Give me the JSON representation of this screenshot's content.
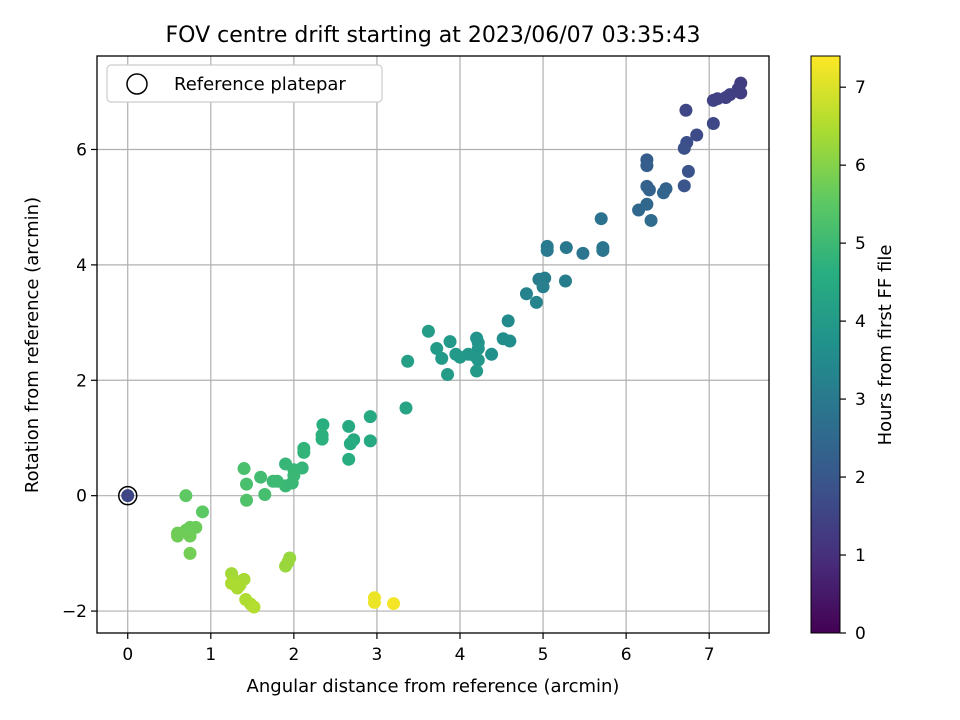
{
  "chart_data": {
    "type": "scatter",
    "title": "FOV centre drift starting at 2023/06/07 03:35:43",
    "xlabel": "Angular distance from reference (arcmin)",
    "ylabel": "Rotation from reference (arcmin)",
    "xlim": [
      -0.37,
      7.72
    ],
    "ylim": [
      -2.38,
      7.62
    ],
    "x_ticks": [
      0,
      1,
      2,
      3,
      4,
      5,
      6,
      7
    ],
    "y_ticks": [
      -2,
      0,
      2,
      4,
      6
    ],
    "x_tick_labels": [
      "0",
      "1",
      "2",
      "3",
      "4",
      "5",
      "6",
      "7"
    ],
    "y_tick_labels": [
      "−2",
      "0",
      "2",
      "4",
      "6"
    ],
    "grid": true,
    "legend": {
      "position": "top-left",
      "entries": [
        "Reference platepar"
      ]
    },
    "colorbar": {
      "label": "Hours from first FF file",
      "range": [
        0,
        7.4
      ],
      "ticks": [
        0,
        1,
        2,
        3,
        4,
        5,
        6,
        7
      ],
      "tick_labels": [
        "0",
        "1",
        "2",
        "3",
        "4",
        "5",
        "6",
        "7"
      ],
      "colormap": "viridis"
    },
    "reference_point": {
      "x": 0,
      "y": 0,
      "hours": 0
    },
    "series": [
      {
        "points": [
          [
            7.38,
            7.15,
            1.3
          ],
          [
            7.35,
            7.05,
            1.35
          ],
          [
            7.38,
            6.98,
            1.35
          ],
          [
            7.25,
            6.95,
            1.4
          ],
          [
            7.2,
            6.9,
            1.4
          ],
          [
            7.1,
            6.88,
            1.45
          ],
          [
            7.05,
            6.85,
            1.45
          ],
          [
            6.72,
            6.68,
            1.55
          ],
          [
            7.05,
            6.45,
            1.6
          ],
          [
            6.85,
            6.25,
            1.7
          ],
          [
            6.73,
            6.12,
            1.75
          ],
          [
            6.7,
            6.02,
            1.8
          ],
          [
            6.75,
            5.62,
            1.9
          ],
          [
            6.7,
            5.37,
            1.95
          ],
          [
            6.25,
            5.82,
            2.15
          ],
          [
            6.25,
            5.72,
            2.2
          ],
          [
            6.25,
            5.36,
            2.3
          ],
          [
            6.28,
            5.3,
            2.3
          ],
          [
            6.48,
            5.32,
            2.35
          ],
          [
            6.45,
            5.25,
            2.4
          ],
          [
            6.25,
            5.05,
            2.45
          ],
          [
            6.15,
            4.95,
            2.5
          ],
          [
            6.3,
            4.77,
            2.6
          ],
          [
            5.7,
            4.8,
            2.75
          ],
          [
            5.72,
            4.3,
            2.85
          ],
          [
            5.72,
            4.25,
            2.85
          ],
          [
            5.48,
            4.2,
            2.9
          ],
          [
            5.28,
            4.3,
            2.95
          ],
          [
            5.05,
            4.32,
            3.0
          ],
          [
            5.05,
            4.25,
            3.0
          ],
          [
            4.95,
            3.75,
            3.1
          ],
          [
            5.02,
            3.77,
            3.1
          ],
          [
            5.0,
            3.62,
            3.15
          ],
          [
            5.27,
            3.72,
            3.1
          ],
          [
            4.8,
            3.5,
            3.25
          ],
          [
            4.92,
            3.35,
            3.3
          ],
          [
            4.58,
            3.03,
            3.5
          ],
          [
            4.6,
            2.68,
            3.6
          ],
          [
            4.52,
            2.72,
            3.6
          ],
          [
            4.38,
            2.45,
            3.7
          ],
          [
            4.2,
            2.73,
            3.8
          ],
          [
            4.22,
            2.65,
            3.8
          ],
          [
            4.22,
            2.55,
            3.85
          ],
          [
            4.18,
            2.42,
            3.85
          ],
          [
            4.22,
            2.35,
            3.9
          ],
          [
            4.2,
            2.16,
            3.95
          ],
          [
            4.1,
            2.45,
            3.9
          ],
          [
            4.0,
            2.4,
            3.95
          ],
          [
            3.95,
            2.45,
            3.95
          ],
          [
            3.88,
            2.67,
            3.95
          ],
          [
            3.72,
            2.55,
            4.0
          ],
          [
            3.78,
            2.38,
            4.0
          ],
          [
            3.85,
            2.1,
            4.05
          ],
          [
            3.62,
            2.85,
            4.05
          ],
          [
            3.37,
            2.33,
            4.15
          ],
          [
            3.35,
            1.52,
            4.3
          ],
          [
            2.92,
            1.37,
            4.45
          ],
          [
            2.92,
            0.95,
            4.5
          ],
          [
            2.72,
            0.97,
            4.5
          ],
          [
            2.68,
            0.9,
            4.55
          ],
          [
            2.66,
            1.2,
            4.5
          ],
          [
            2.66,
            0.63,
            4.6
          ],
          [
            2.35,
            1.23,
            4.65
          ],
          [
            2.34,
            1.05,
            4.7
          ],
          [
            2.34,
            0.98,
            4.7
          ],
          [
            2.12,
            0.82,
            4.8
          ],
          [
            2.12,
            0.75,
            4.8
          ],
          [
            2.1,
            0.48,
            4.85
          ],
          [
            2.0,
            0.45,
            4.9
          ],
          [
            1.9,
            0.55,
            4.9
          ],
          [
            2.0,
            0.35,
            4.95
          ],
          [
            1.98,
            0.22,
            4.95
          ],
          [
            1.9,
            0.17,
            4.95
          ],
          [
            1.8,
            0.25,
            5.0
          ],
          [
            1.75,
            0.25,
            5.0
          ],
          [
            1.6,
            0.32,
            5.1
          ],
          [
            1.65,
            0.02,
            5.15
          ],
          [
            1.4,
            0.47,
            5.2
          ],
          [
            1.43,
            0.2,
            5.2
          ],
          [
            1.43,
            -0.08,
            5.3
          ],
          [
            0.9,
            -0.28,
            5.5
          ],
          [
            0.7,
            0.0,
            5.55
          ],
          [
            0.82,
            -0.55,
            5.7
          ],
          [
            0.75,
            -0.55,
            5.7
          ],
          [
            0.7,
            -0.6,
            5.7
          ],
          [
            0.75,
            -0.7,
            5.75
          ],
          [
            0.6,
            -0.65,
            5.75
          ],
          [
            0.6,
            -0.7,
            5.75
          ],
          [
            0.75,
            -1.0,
            5.8
          ],
          [
            1.95,
            -1.08,
            6.2
          ],
          [
            1.93,
            -1.15,
            6.25
          ],
          [
            1.9,
            -1.22,
            6.25
          ],
          [
            1.25,
            -1.35,
            6.35
          ],
          [
            1.4,
            -1.45,
            6.4
          ],
          [
            1.3,
            -1.48,
            6.4
          ],
          [
            1.25,
            -1.52,
            6.45
          ],
          [
            1.35,
            -1.55,
            6.45
          ],
          [
            1.32,
            -1.6,
            6.45
          ],
          [
            1.42,
            -1.8,
            6.5
          ],
          [
            1.48,
            -1.88,
            6.5
          ],
          [
            1.52,
            -1.93,
            6.55
          ],
          [
            2.97,
            -1.77,
            7.2
          ],
          [
            2.97,
            -1.85,
            7.2
          ],
          [
            3.2,
            -1.87,
            7.3
          ]
        ]
      }
    ]
  }
}
